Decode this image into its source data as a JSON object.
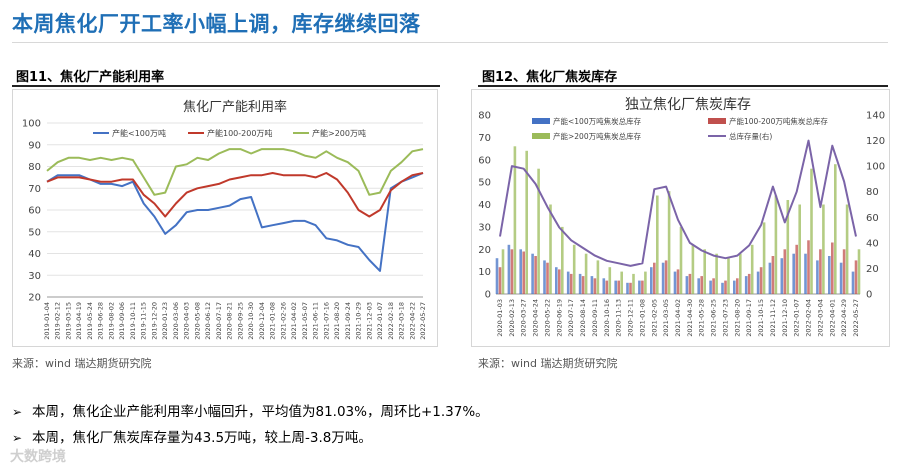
{
  "header": {
    "title": "本周焦化厂开工率小幅上调，库存继续回落"
  },
  "figures": [
    {
      "caption": "图11、焦化厂产能利用率",
      "source": "来源：wind   瑞达期货研究院"
    },
    {
      "caption": "图12、焦化厂焦炭库存",
      "source": "来源：wind   瑞达期货研究院"
    }
  ],
  "bullets": [
    "本周，焦化企业产能利用率小幅回升，平均值为81.03%，周环比+1.37%。",
    "本周，焦化厂焦炭库存量为43.5万吨，较上周-3.8万吨。"
  ],
  "bullet_mark": "➢",
  "watermark": "大数跨境",
  "chart_data": [
    {
      "type": "line",
      "title": "焦化厂产能利用率",
      "ylim": [
        20,
        100
      ],
      "yticks": [
        20,
        30,
        40,
        50,
        60,
        70,
        80,
        90,
        100
      ],
      "grid": true,
      "legend_position": "top",
      "x": [
        "2019-01-04",
        "2019-02-12",
        "2019-03-15",
        "2019-04-19",
        "2019-05-24",
        "2019-06-28",
        "2019-08-02",
        "2019-09-06",
        "2019-10-11",
        "2019-11-15",
        "2019-12-20",
        "2020-01-23",
        "2020-03-06",
        "2020-04-03",
        "2020-05-08",
        "2020-06-12",
        "2020-07-17",
        "2020-08-21",
        "2020-09-25",
        "2020-10-30",
        "2020-12-04",
        "2021-01-08",
        "2021-02-26",
        "2021-04-02",
        "2021-05-07",
        "2021-06-11",
        "2021-07-16",
        "2021-08-20",
        "2021-09-24",
        "2021-10-29",
        "2021-12-03",
        "2022-01-07",
        "2022-02-18",
        "2022-03-18",
        "2022-04-22",
        "2022-05-27"
      ],
      "series": [
        {
          "name": "产能<100万吨",
          "color": "#4472c4",
          "values": [
            73,
            76,
            76,
            76,
            74,
            72,
            72,
            71,
            73,
            63,
            57,
            49,
            53,
            59,
            60,
            60,
            61,
            62,
            65,
            66,
            52,
            53,
            54,
            55,
            55,
            53,
            47,
            46,
            44,
            43,
            37,
            32,
            70,
            73,
            75,
            77
          ]
        },
        {
          "name": "产能100-200万吨",
          "color": "#c0392b",
          "values": [
            73,
            75,
            75,
            75,
            74,
            73,
            73,
            74,
            74,
            67,
            63,
            57,
            63,
            68,
            70,
            71,
            72,
            74,
            75,
            76,
            76,
            77,
            76,
            76,
            76,
            75,
            77,
            74,
            68,
            60,
            57,
            60,
            69,
            73,
            76,
            77
          ]
        },
        {
          "name": "产能>200万吨",
          "color": "#9bbb59",
          "values": [
            78,
            82,
            84,
            84,
            83,
            84,
            83,
            84,
            83,
            75,
            67,
            68,
            80,
            81,
            84,
            83,
            86,
            88,
            88,
            86,
            88,
            88,
            88,
            87,
            85,
            84,
            87,
            84,
            82,
            78,
            67,
            68,
            78,
            82,
            87,
            88
          ]
        }
      ]
    },
    {
      "type": "bar",
      "title": "独立焦化厂焦炭库存",
      "ylim_left": [
        0,
        80
      ],
      "yticks_left": [
        0,
        10,
        20,
        30,
        40,
        50,
        60,
        70,
        80
      ],
      "ylim_right": [
        0,
        140
      ],
      "yticks_right": [
        0,
        20,
        40,
        60,
        80,
        100,
        120,
        140
      ],
      "legend_position": "top",
      "x": [
        "2020-01-03",
        "2020-02-13",
        "2020-03-27",
        "2020-04-24",
        "2020-05-22",
        "2020-06-19",
        "2020-07-17",
        "2020-08-14",
        "2020-09-11",
        "2020-10-16",
        "2020-11-13",
        "2020-12-11",
        "2021-01-08",
        "2021-02-05",
        "2021-03-05",
        "2021-04-02",
        "2021-04-30",
        "2021-05-28",
        "2021-06-25",
        "2021-07-23",
        "2021-08-20",
        "2021-09-17",
        "2021-10-15",
        "2021-11-12",
        "2021-12-10",
        "2022-01-07",
        "2022-02-04",
        "2022-03-04",
        "2022-04-01",
        "2022-04-29",
        "2022-05-27"
      ],
      "series": [
        {
          "name": "产能<100万吨焦炭总库存",
          "color": "#4472c4",
          "axis": "left",
          "values": [
            16,
            22,
            20,
            18,
            15,
            12,
            10,
            9,
            8,
            7,
            6,
            5,
            6,
            12,
            14,
            10,
            8,
            7,
            6,
            5,
            6,
            8,
            10,
            14,
            16,
            18,
            18,
            15,
            17,
            14,
            10
          ]
        },
        {
          "name": "产能100-200万吨焦炭总库存",
          "color": "#c0504d",
          "axis": "left",
          "values": [
            12,
            20,
            19,
            17,
            14,
            11,
            9,
            8,
            7,
            6,
            6,
            5,
            6,
            14,
            15,
            11,
            9,
            8,
            7,
            6,
            7,
            9,
            12,
            17,
            20,
            22,
            24,
            20,
            23,
            20,
            15
          ]
        },
        {
          "name": "产能>200万吨焦炭总库存",
          "color": "#9bbb59",
          "axis": "left",
          "values": [
            20,
            66,
            64,
            56,
            40,
            30,
            22,
            18,
            15,
            12,
            10,
            9,
            10,
            44,
            46,
            30,
            22,
            20,
            18,
            16,
            18,
            22,
            32,
            44,
            42,
            40,
            56,
            40,
            58,
            40,
            20
          ]
        },
        {
          "name": "总库存量(右)",
          "color": "#7b64a8",
          "axis": "right",
          "type": "line",
          "values": [
            45,
            100,
            98,
            86,
            68,
            52,
            42,
            36,
            30,
            26,
            24,
            22,
            24,
            82,
            84,
            58,
            40,
            34,
            30,
            28,
            30,
            38,
            54,
            84,
            56,
            80,
            120,
            68,
            116,
            88,
            45
          ]
        }
      ]
    }
  ]
}
